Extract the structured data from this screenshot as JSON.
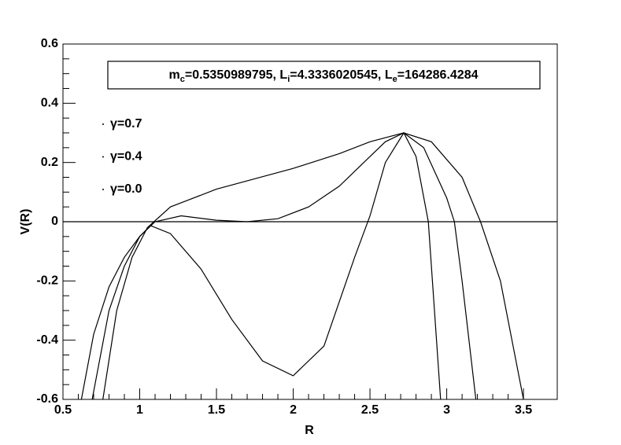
{
  "chart_data": {
    "type": "line",
    "xlabel": "R",
    "ylabel": "V(R)",
    "annotation": [
      [
        "m",
        "c",
        "=0.5350989795, "
      ],
      [
        "L",
        "i",
        "=4.3336020545, "
      ],
      [
        "L",
        "e",
        "=164286.4284"
      ]
    ],
    "xlim": [
      0.5,
      3.72
    ],
    "ylim": [
      -0.6,
      0.6
    ],
    "xticks": [
      0.5,
      1,
      1.5,
      2,
      2.5,
      3,
      3.5
    ],
    "yticks": [
      -0.6,
      -0.4,
      -0.2,
      0,
      0.2,
      0.4,
      0.6
    ],
    "color": "#000000",
    "series": [
      {
        "name": "γ=0.7",
        "x": [
          0.76,
          0.85,
          0.95,
          1.05,
          1.2,
          1.5,
          2.0,
          2.3,
          2.5,
          2.72,
          2.9,
          3.1,
          3.22,
          3.35,
          3.5
        ],
        "values": [
          -0.6,
          -0.3,
          -0.12,
          -0.02,
          0.05,
          0.11,
          0.18,
          0.23,
          0.27,
          0.3,
          0.27,
          0.15,
          0.0,
          -0.2,
          -0.6
        ]
      },
      {
        "name": "γ=0.4",
        "x": [
          0.69,
          0.8,
          0.9,
          1.0,
          1.1,
          1.27,
          1.5,
          1.7,
          1.9,
          2.1,
          2.3,
          2.5,
          2.6,
          2.72,
          2.85,
          3.0,
          3.05,
          3.1,
          3.19
        ],
        "values": [
          -0.6,
          -0.3,
          -0.15,
          -0.05,
          0.0,
          0.02,
          0.005,
          0.0,
          0.01,
          0.05,
          0.12,
          0.22,
          0.27,
          0.3,
          0.25,
          0.08,
          0.0,
          -0.2,
          -0.6
        ]
      },
      {
        "name": "γ=0.0",
        "x": [
          0.62,
          0.7,
          0.8,
          0.9,
          1.0,
          1.07,
          1.2,
          1.4,
          1.6,
          1.8,
          2.0,
          2.2,
          2.4,
          2.5,
          2.6,
          2.72,
          2.8,
          2.88,
          2.96
        ],
        "values": [
          -0.6,
          -0.38,
          -0.22,
          -0.12,
          -0.05,
          -0.013,
          -0.04,
          -0.16,
          -0.33,
          -0.47,
          -0.52,
          -0.42,
          -0.12,
          0.02,
          0.2,
          0.3,
          0.22,
          0.0,
          -0.6
        ]
      }
    ]
  }
}
